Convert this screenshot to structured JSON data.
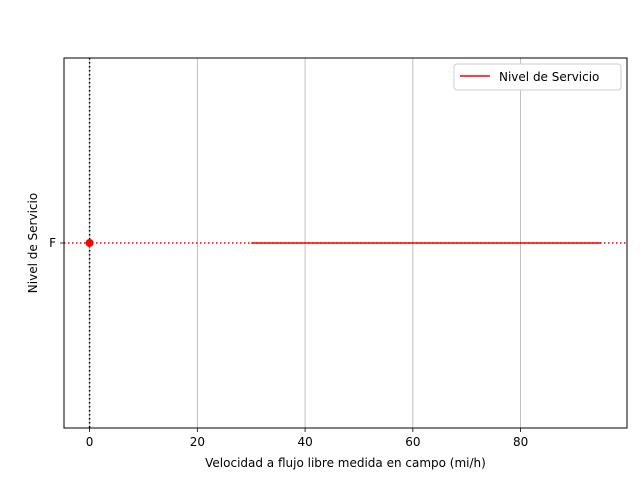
{
  "chart_data": {
    "type": "line",
    "title": "",
    "xlabel": "Velocidad a flujo libre medida en campo (mi/h)",
    "ylabel": "Nivel de Servicio",
    "xlim": [
      -4.75,
      99.75
    ],
    "xticks": [
      0,
      20,
      40,
      60,
      80
    ],
    "ycategories": [
      "F"
    ],
    "grid": "x-only",
    "legend": "top-right",
    "series": [
      {
        "name": "Nivel de Servicio",
        "color": "#ff0000",
        "x": [
          30,
          95
        ],
        "y": [
          "F",
          "F"
        ]
      }
    ],
    "reference_lines": {
      "vertical_x": 0,
      "vertical_color": "#000000",
      "horizontal_y": "F",
      "horizontal_color": "#ff0000"
    },
    "marker": {
      "x": 0,
      "y": "F",
      "color": "#ff0000"
    }
  }
}
